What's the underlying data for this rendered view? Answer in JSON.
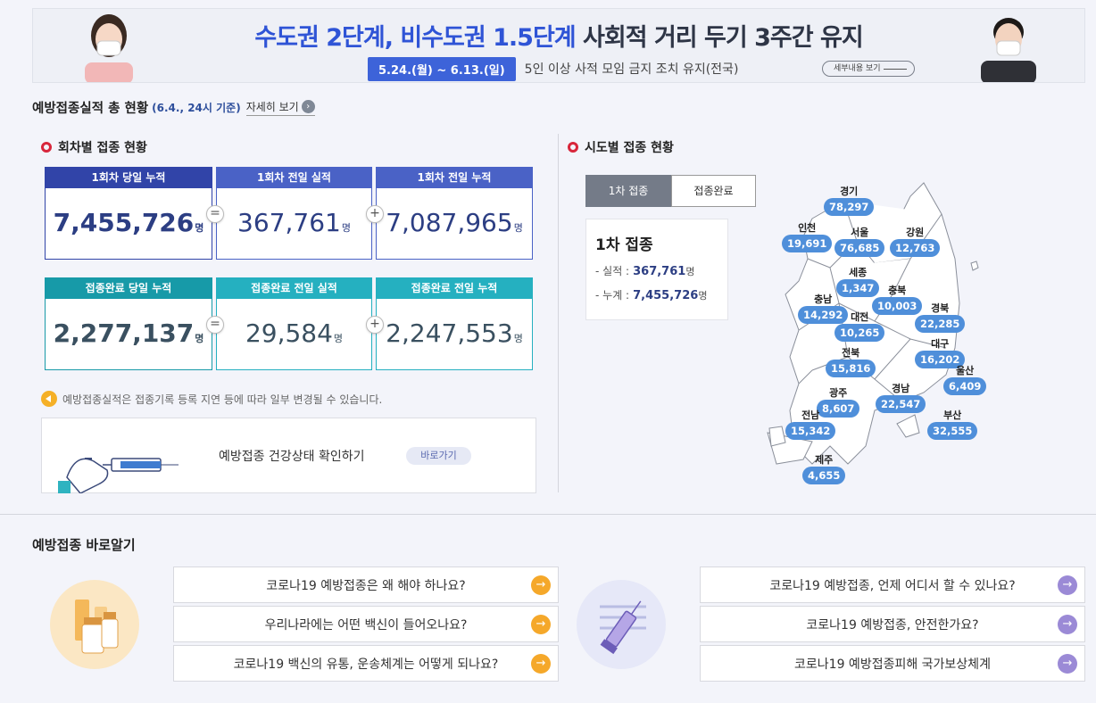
{
  "banner": {
    "title_blue": "수도권 2단계, 비수도권 1.5단계",
    "title_dark": "사회적 거리 두기 3주간 유지",
    "date": "5.24.(월) ~ 6.13.(일)",
    "desc": "5인 이상 사적 모임 금지 조치 유지(전국)",
    "more": "세부내용 보기"
  },
  "summary": {
    "title": "예방접종실적 총 현황",
    "basis": "(6.4., 24시 기준)",
    "more": "자세히 보기"
  },
  "dose": {
    "heading": "회차별 접종 현황",
    "unit": "명",
    "row1": [
      {
        "label": "1회차 당일 누적",
        "value": "7,455,726"
      },
      {
        "label": "1회차 전일 실적",
        "value": "367,761"
      },
      {
        "label": "1회차 전일 누적",
        "value": "7,087,965"
      }
    ],
    "row2": [
      {
        "label": "접종완료 당일 누적",
        "value": "2,277,137"
      },
      {
        "label": "접종완료 전일 실적",
        "value": "29,584"
      },
      {
        "label": "접종완료 전일 누적",
        "value": "2,247,553"
      }
    ],
    "op_eq": "=",
    "op_plus": "+",
    "note": "예방접종실적은 접종기록 등록 지연 등에 따라 일부 변경될 수 있습니다.",
    "health_label": "예방접종 건강상태 확인하기",
    "health_go": "바로가기"
  },
  "region": {
    "heading": "시도별 접종 현황",
    "tabs": [
      "1차 접종",
      "접종완료"
    ],
    "info_title": "1차 접종",
    "perf_label": "실적 :",
    "perf_value": "367,761",
    "total_label": "누계 :",
    "total_value": "7,455,726",
    "unit": "명",
    "areas": [
      {
        "name": "경기",
        "value": "78,297"
      },
      {
        "name": "인천",
        "value": "19,691"
      },
      {
        "name": "서울",
        "value": "76,685"
      },
      {
        "name": "강원",
        "value": "12,763"
      },
      {
        "name": "세종",
        "value": "1,347"
      },
      {
        "name": "충북",
        "value": "10,003"
      },
      {
        "name": "충남",
        "value": "14,292"
      },
      {
        "name": "대전",
        "value": "10,265"
      },
      {
        "name": "경북",
        "value": "22,285"
      },
      {
        "name": "대구",
        "value": "16,202"
      },
      {
        "name": "전북",
        "value": "15,816"
      },
      {
        "name": "울산",
        "value": "6,409"
      },
      {
        "name": "광주",
        "value": "8,607"
      },
      {
        "name": "경남",
        "value": "22,547"
      },
      {
        "name": "전남",
        "value": "15,342"
      },
      {
        "name": "부산",
        "value": "32,555"
      },
      {
        "name": "제주",
        "value": "4,655"
      }
    ]
  },
  "learn": {
    "title": "예방접종 바로알기",
    "left": [
      "코로나19 예방접종은 왜 해야 하나요?",
      "우리나라에는 어떤 백신이 들어오나요?",
      "코로나19 백신의 유통, 운송체계는 어떻게 되나요?"
    ],
    "right": [
      "코로나19 예방접종, 언제 어디서 할 수 있나요?",
      "코로나19 예방접종, 안전한가요?",
      "코로나19 예방접종피해 국가보상체계"
    ],
    "arrow": "→"
  },
  "colors": {
    "accent_blue": "#2f54d6",
    "navy": "#3144a8",
    "teal": "#179aa8",
    "pill": "#4f8fda",
    "orange": "#f5a82a",
    "purple": "#9b8ad6",
    "red": "#d8263b"
  }
}
